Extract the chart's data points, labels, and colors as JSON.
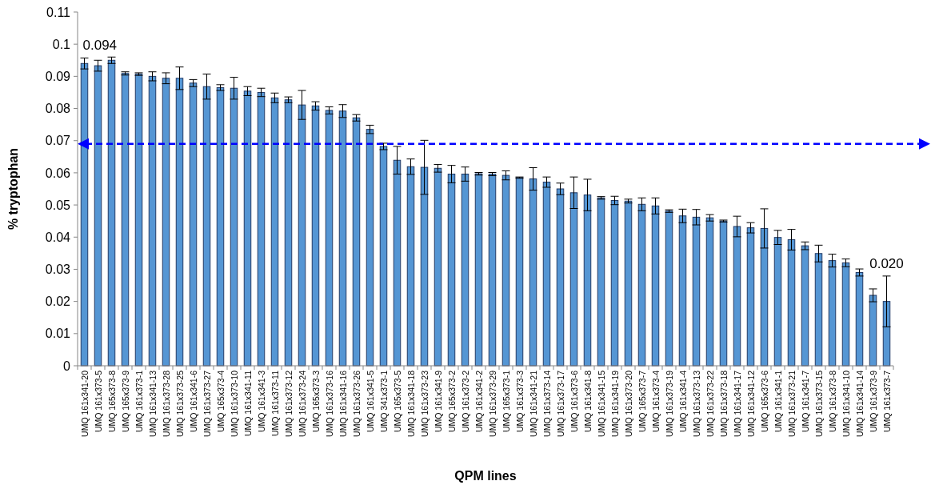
{
  "chart_data": {
    "type": "bar",
    "xlabel": "QPM lines",
    "ylabel": "% tryptophan",
    "categories": [
      "UMQ 161x341-20",
      "UMQ 161x373-5",
      "UMQ 165x373-8",
      "UMQ 165x373-9",
      "UMQ 161x373-1",
      "UMQ 161x341-13",
      "UMQ 161x373-28",
      "UMQ 161x373-25",
      "UMQ 161x341-6",
      "UMQ 161x373-27",
      "UMQ 165x373-4",
      "UMQ 161x373-10",
      "UMQ 161x341-11",
      "UMQ 161x341-3",
      "UMQ 161x373-11",
      "UMQ 161x373-12",
      "UMQ 161x373-24",
      "UMQ 165x373-3",
      "UMQ 161x373-16",
      "UMQ 161x341-16",
      "UMQ 161x373-26",
      "UMQ 161x341-5",
      "UMQ 341x373-1",
      "UMQ 165x373-5",
      "UMQ 161x341-18",
      "UMQ 161x373-23",
      "UMQ 161x341-9",
      "UMQ 165x373-2",
      "UMQ 161x373-2",
      "UMQ 161x341-2",
      "UMQ 161x373-29",
      "UMQ 165x373-1",
      "UMQ 161x373-3",
      "UMQ 161x341-21",
      "UMQ 161x373-14",
      "UMQ 161x373-17",
      "UMQ 161x373-6",
      "UMQ 161x341-8",
      "UMQ 161x341-15",
      "UMQ 161x341-19",
      "UMQ 161x373-20",
      "UMQ 165x373-7",
      "UMQ 161x373-4",
      "UMQ 161x373-19",
      "UMQ 161x341-4",
      "UMQ 161x373-13",
      "UMQ 161x373-22",
      "UMQ 161x373-18",
      "UMQ 161x341-17",
      "UMQ 161x341-12",
      "UMQ 165x373-6",
      "UMQ 161x341-1",
      "UMQ 161x373-21",
      "UMQ 161x341-7",
      "UMQ 161x373-15",
      "UMQ 161x373-8",
      "UMQ 161x341-10",
      "UMQ 161x341-14",
      "UMQ 161x373-9",
      "UMQ 161x373-7"
    ],
    "values": [
      0.094,
      0.0933,
      0.095,
      0.0909,
      0.0907,
      0.09,
      0.0894,
      0.0894,
      0.0879,
      0.0868,
      0.0865,
      0.0863,
      0.0854,
      0.085,
      0.0833,
      0.0827,
      0.0811,
      0.0808,
      0.0794,
      0.0792,
      0.0771,
      0.0735,
      0.0682,
      0.0639,
      0.0619,
      0.0617,
      0.0614,
      0.0596,
      0.0596,
      0.0597,
      0.0596,
      0.0592,
      0.0585,
      0.0581,
      0.0571,
      0.055,
      0.0538,
      0.0531,
      0.0522,
      0.0514,
      0.0512,
      0.0502,
      0.0497,
      0.0481,
      0.0466,
      0.0462,
      0.046,
      0.045,
      0.0433,
      0.0429,
      0.0427,
      0.0399,
      0.0392,
      0.0373,
      0.0349,
      0.0327,
      0.032,
      0.029,
      0.0219,
      0.02
    ],
    "errors": [
      0.0017,
      0.0017,
      0.001,
      0.0005,
      0.0004,
      0.0014,
      0.0017,
      0.0035,
      0.0011,
      0.0039,
      0.0009,
      0.0034,
      0.0014,
      0.0013,
      0.0015,
      0.0009,
      0.0045,
      0.0013,
      0.0011,
      0.002,
      0.001,
      0.0013,
      0.001,
      0.0043,
      0.0024,
      0.0084,
      0.0012,
      0.0027,
      0.0022,
      0.0004,
      0.0005,
      0.0014,
      0.0002,
      0.0035,
      0.0016,
      0.0018,
      0.0049,
      0.0049,
      0.0004,
      0.0013,
      0.0006,
      0.002,
      0.0025,
      0.0004,
      0.0021,
      0.0024,
      0.001,
      0.0003,
      0.0032,
      0.0016,
      0.0061,
      0.0022,
      0.0032,
      0.0012,
      0.0026,
      0.002,
      0.0012,
      0.0011,
      0.002,
      0.0079
    ],
    "value_labels": [
      "0.094",
      null,
      null,
      null,
      null,
      null,
      null,
      null,
      null,
      null,
      null,
      null,
      null,
      null,
      null,
      null,
      null,
      null,
      null,
      null,
      null,
      null,
      null,
      null,
      null,
      null,
      null,
      null,
      null,
      null,
      null,
      null,
      null,
      null,
      null,
      null,
      null,
      null,
      null,
      null,
      null,
      null,
      null,
      null,
      null,
      null,
      null,
      null,
      null,
      null,
      null,
      null,
      null,
      null,
      null,
      null,
      null,
      null,
      null,
      "0.020"
    ],
    "color": "#5596d4",
    "ylim": [
      0,
      0.11
    ],
    "yticks": [
      0,
      0.01,
      0.02,
      0.03,
      0.04,
      0.05,
      0.06,
      0.07,
      0.08,
      0.09,
      0.1,
      0.11
    ],
    "ref_lines": [
      {
        "axis": "y",
        "value": 0.069,
        "color": "#0000ff",
        "line_style": "dashed"
      }
    ]
  }
}
